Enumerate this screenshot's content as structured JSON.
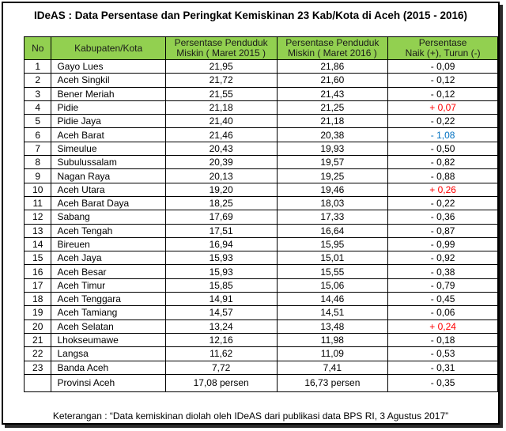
{
  "title": "IDeAS : Data Persentase dan Peringkat Kemiskinan 23 Kab/Kota di Aceh (2015 - 2016)",
  "headers": {
    "no": "No",
    "kab": "Kabupaten/Kota",
    "p2015_line1": "Persentase Penduduk",
    "p2015_line2": "Miskin ( Maret 2015 )",
    "p2016_line1": "Persentase Penduduk",
    "p2016_line2": "Miskin ( Maret 2016 )",
    "chg_line1": "Persentase",
    "chg_line2": "Naik (+), Turun  (-)"
  },
  "colors": {
    "header_bg": "#92d050",
    "increase": "#ff0000",
    "big_decrease": "#0070c0"
  },
  "rows": [
    {
      "no": "1",
      "kab": "Gayo Lues",
      "p2015": "21,95",
      "p2016": "21,86",
      "chg": "- 0,09",
      "tone": "down"
    },
    {
      "no": "2",
      "kab": "Aceh Singkil",
      "p2015": "21,72",
      "p2016": "21,60",
      "chg": "- 0,12",
      "tone": "down"
    },
    {
      "no": "3",
      "kab": "Bener Meriah",
      "p2015": "21,55",
      "p2016": "21,43",
      "chg": "- 0,12",
      "tone": "down"
    },
    {
      "no": "4",
      "kab": "Pidie",
      "p2015": "21,18",
      "p2016": "21,25",
      "chg": "+ 0,07",
      "tone": "up"
    },
    {
      "no": "5",
      "kab": "Pidie Jaya",
      "p2015": "21,40",
      "p2016": "21,18",
      "chg": "- 0,22",
      "tone": "down"
    },
    {
      "no": "6",
      "kab": "Aceh Barat",
      "p2015": "21,46",
      "p2016": "20,38",
      "chg": "- 1,08",
      "tone": "bigdown"
    },
    {
      "no": "7",
      "kab": "Simeulue",
      "p2015": "20,43",
      "p2016": "19,93",
      "chg": "- 0,50",
      "tone": "down"
    },
    {
      "no": "8",
      "kab": "Subulussalam",
      "p2015": "20,39",
      "p2016": "19,57",
      "chg": "- 0,82",
      "tone": "down"
    },
    {
      "no": "9",
      "kab": "Nagan Raya",
      "p2015": "20,13",
      "p2016": "19,25",
      "chg": "- 0,88",
      "tone": "down"
    },
    {
      "no": "10",
      "kab": "Aceh Utara",
      "p2015": "19,20",
      "p2016": "19,46",
      "chg": "+ 0,26",
      "tone": "up"
    },
    {
      "no": "11",
      "kab": "Aceh Barat Daya",
      "p2015": "18,25",
      "p2016": "18,03",
      "chg": "- 0,22",
      "tone": "down"
    },
    {
      "no": "12",
      "kab": "Sabang",
      "p2015": "17,69",
      "p2016": "17,33",
      "chg": "- 0,36",
      "tone": "down"
    },
    {
      "no": "13",
      "kab": "Aceh Tengah",
      "p2015": "17,51",
      "p2016": "16,64",
      "chg": "- 0,87",
      "tone": "down"
    },
    {
      "no": "14",
      "kab": "Bireuen",
      "p2015": "16,94",
      "p2016": "15,95",
      "chg": "- 0,99",
      "tone": "down"
    },
    {
      "no": "15",
      "kab": "Aceh Jaya",
      "p2015": "15,93",
      "p2016": "15,01",
      "chg": "- 0,92",
      "tone": "down"
    },
    {
      "no": "16",
      "kab": "Aceh Besar",
      "p2015": "15,93",
      "p2016": "15,55",
      "chg": "- 0,38",
      "tone": "down"
    },
    {
      "no": "17",
      "kab": "Aceh Timur",
      "p2015": "15,85",
      "p2016": "15,06",
      "chg": "- 0,79",
      "tone": "down"
    },
    {
      "no": "18",
      "kab": "Aceh Tenggara",
      "p2015": "14,91",
      "p2016": "14,46",
      "chg": "- 0,45",
      "tone": "down"
    },
    {
      "no": "19",
      "kab": "Aceh Tamiang",
      "p2015": "14,57",
      "p2016": "14,51",
      "chg": "- 0,06",
      "tone": "down"
    },
    {
      "no": "20",
      "kab": "Aceh Selatan",
      "p2015": "13,24",
      "p2016": "13,48",
      "chg": "+ 0,24",
      "tone": "up"
    },
    {
      "no": "21",
      "kab": "Lhokseumawe",
      "p2015": "12,16",
      "p2016": "11,98",
      "chg": "- 0,18",
      "tone": "down"
    },
    {
      "no": "22",
      "kab": "Langsa",
      "p2015": "11,62",
      "p2016": "11,09",
      "chg": "- 0,53",
      "tone": "down"
    },
    {
      "no": "23",
      "kab": "Banda Aceh",
      "p2015": "7,72",
      "p2016": "7,41",
      "chg": "- 0,31",
      "tone": "down"
    }
  ],
  "total": {
    "no": "",
    "kab": "Provinsi Aceh",
    "p2015": "17,08 persen",
    "p2016": "16,73 persen",
    "chg": "- 0,35"
  },
  "note": "Keterangan : “Data kemiskinan diolah oleh IDeAS dari publikasi data BPS RI, 3 Agustus 2017”"
}
